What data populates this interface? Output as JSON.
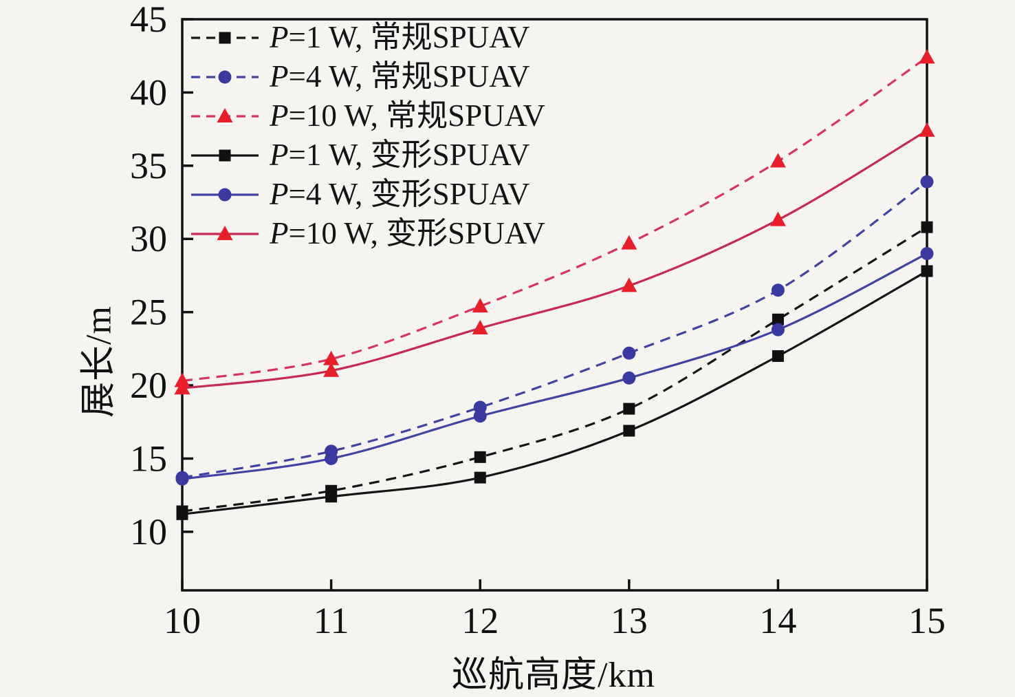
{
  "chart_data": {
    "type": "line",
    "title": "",
    "xlabel": "巡航高度/km",
    "ylabel": "展长/m",
    "x": [
      10,
      11,
      12,
      13,
      14,
      15
    ],
    "xlim": [
      10,
      15
    ],
    "ylim": [
      6,
      45
    ],
    "xticks": [
      10,
      11,
      12,
      13,
      14,
      15
    ],
    "yticks": [
      10,
      15,
      20,
      25,
      30,
      35,
      40,
      45
    ],
    "grid": false,
    "legend_position": "upper-left-inside",
    "series": [
      {
        "name": "P=1 W, 常规SPUAV",
        "values": [
          11.4,
          12.8,
          15.1,
          18.4,
          24.5,
          30.8
        ],
        "line": "dashed",
        "marker": "square",
        "color": "#151515",
        "marker_color": "#111111"
      },
      {
        "name": "P=4 W, 常规SPUAV",
        "values": [
          13.7,
          15.5,
          18.5,
          22.2,
          26.5,
          33.9
        ],
        "line": "dashed",
        "marker": "circle",
        "color": "#4242a2",
        "marker_color": "#3939a0"
      },
      {
        "name": "P=10 W, 常规SPUAV",
        "values": [
          20.3,
          21.8,
          25.4,
          29.7,
          35.3,
          42.4
        ],
        "line": "dashed",
        "marker": "triangle",
        "color": "#d83462",
        "marker_color": "#e71f2b"
      },
      {
        "name": "P=1 W, 变形SPUAV",
        "values": [
          11.2,
          12.4,
          13.7,
          16.9,
          22.0,
          27.8
        ],
        "line": "solid",
        "marker": "square",
        "color": "#151515",
        "marker_color": "#111111"
      },
      {
        "name": "P=4 W, 变形SPUAV",
        "values": [
          13.6,
          15.0,
          17.9,
          20.5,
          23.8,
          29.0
        ],
        "line": "solid",
        "marker": "circle",
        "color": "#4242a2",
        "marker_color": "#3939a0"
      },
      {
        "name": "P=10 W, 变形SPUAV",
        "values": [
          19.8,
          21.0,
          23.9,
          26.8,
          31.3,
          37.4
        ],
        "line": "solid",
        "marker": "triangle",
        "color": "#c62a52",
        "marker_color": "#e71f2b"
      }
    ]
  },
  "colors": {
    "background": "#f5f4f1",
    "axis": "#111111",
    "tick_label": "#111111"
  }
}
